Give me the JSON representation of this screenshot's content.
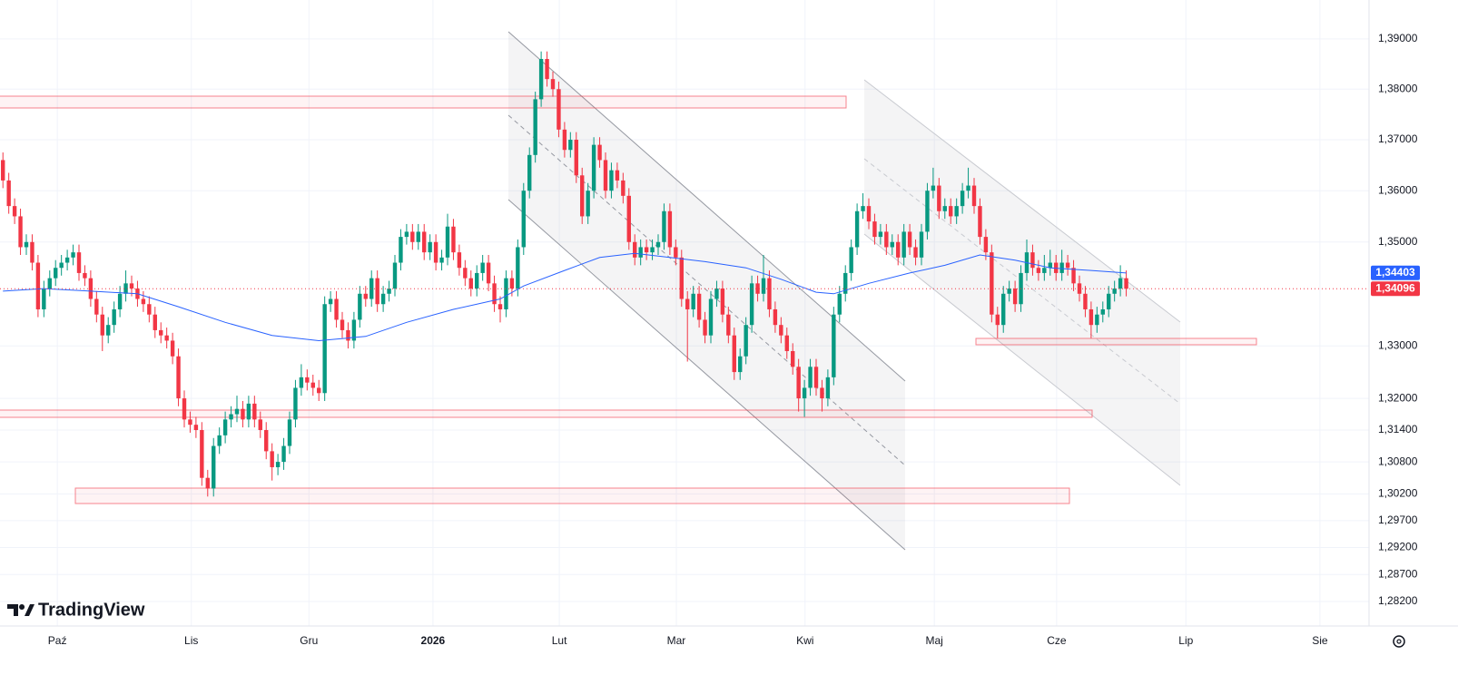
{
  "chart_data": {
    "type": "candlestick",
    "up_color": "#089981",
    "down_color": "#f23645",
    "ohlc": [
      [
        1.366,
        1.3675,
        1.3605,
        1.362
      ],
      [
        1.362,
        1.3635,
        1.3555,
        1.357
      ],
      [
        1.357,
        1.3585,
        1.3535,
        1.355
      ],
      [
        1.355,
        1.3565,
        1.3475,
        1.349
      ],
      [
        1.349,
        1.3515,
        1.3475,
        1.35
      ],
      [
        1.35,
        1.3515,
        1.3445,
        1.346
      ],
      [
        1.346,
        1.3475,
        1.3355,
        1.337
      ],
      [
        1.337,
        1.3425,
        1.3355,
        1.341
      ],
      [
        1.341,
        1.3445,
        1.3395,
        1.343
      ],
      [
        1.343,
        1.3465,
        1.3415,
        1.345
      ],
      [
        1.345,
        1.3475,
        1.3435,
        1.346
      ],
      [
        1.346,
        1.3485,
        1.3445,
        1.347
      ],
      [
        1.347,
        1.3495,
        1.3455,
        1.348
      ],
      [
        1.348,
        1.3495,
        1.3425,
        1.344
      ],
      [
        1.344,
        1.3455,
        1.3415,
        1.343
      ],
      [
        1.343,
        1.3445,
        1.3375,
        1.339
      ],
      [
        1.339,
        1.3405,
        1.3345,
        1.336
      ],
      [
        1.336,
        1.3375,
        1.329,
        1.332
      ],
      [
        1.332,
        1.3355,
        1.3305,
        1.334
      ],
      [
        1.334,
        1.3385,
        1.3325,
        1.337
      ],
      [
        1.337,
        1.3415,
        1.3355,
        1.34
      ],
      [
        1.34,
        1.3445,
        1.3385,
        1.342
      ],
      [
        1.342,
        1.3435,
        1.3395,
        1.341
      ],
      [
        1.341,
        1.3425,
        1.3375,
        1.339
      ],
      [
        1.339,
        1.3405,
        1.3365,
        1.338
      ],
      [
        1.338,
        1.3395,
        1.3345,
        1.336
      ],
      [
        1.336,
        1.3375,
        1.3315,
        1.333
      ],
      [
        1.333,
        1.3345,
        1.3305,
        1.332
      ],
      [
        1.332,
        1.3335,
        1.3295,
        1.331
      ],
      [
        1.331,
        1.3325,
        1.3265,
        1.328
      ],
      [
        1.328,
        1.3295,
        1.3185,
        1.32
      ],
      [
        1.32,
        1.3215,
        1.3145,
        1.316
      ],
      [
        1.316,
        1.3175,
        1.3135,
        1.315
      ],
      [
        1.315,
        1.3165,
        1.3125,
        1.314
      ],
      [
        1.314,
        1.3155,
        1.3035,
        1.305
      ],
      [
        1.305,
        1.3065,
        1.3015,
        1.303
      ],
      [
        1.303,
        1.3125,
        1.3015,
        1.311
      ],
      [
        1.311,
        1.3145,
        1.3095,
        1.313
      ],
      [
        1.313,
        1.3175,
        1.3115,
        1.316
      ],
      [
        1.316,
        1.3185,
        1.3145,
        1.317
      ],
      [
        1.317,
        1.3205,
        1.3155,
        1.318
      ],
      [
        1.318,
        1.3195,
        1.3145,
        1.316
      ],
      [
        1.316,
        1.3205,
        1.3145,
        1.319
      ],
      [
        1.319,
        1.3205,
        1.3145,
        1.316
      ],
      [
        1.316,
        1.3175,
        1.3125,
        1.314
      ],
      [
        1.314,
        1.3155,
        1.3085,
        1.31
      ],
      [
        1.31,
        1.3115,
        1.3045,
        1.307
      ],
      [
        1.307,
        1.3095,
        1.3055,
        1.308
      ],
      [
        1.308,
        1.3125,
        1.3065,
        1.311
      ],
      [
        1.311,
        1.3175,
        1.3095,
        1.316
      ],
      [
        1.316,
        1.3235,
        1.3145,
        1.322
      ],
      [
        1.322,
        1.3265,
        1.3205,
        1.324
      ],
      [
        1.324,
        1.3255,
        1.3215,
        1.323
      ],
      [
        1.323,
        1.3245,
        1.3205,
        1.322
      ],
      [
        1.322,
        1.3235,
        1.3195,
        1.321
      ],
      [
        1.321,
        1.3395,
        1.3195,
        1.338
      ],
      [
        1.338,
        1.3405,
        1.3365,
        1.339
      ],
      [
        1.339,
        1.3405,
        1.3335,
        1.335
      ],
      [
        1.335,
        1.3365,
        1.3315,
        1.333
      ],
      [
        1.333,
        1.3345,
        1.3295,
        1.331
      ],
      [
        1.331,
        1.3365,
        1.3295,
        1.335
      ],
      [
        1.335,
        1.3415,
        1.3335,
        1.34
      ],
      [
        1.34,
        1.3415,
        1.3375,
        1.339
      ],
      [
        1.339,
        1.3445,
        1.3375,
        1.343
      ],
      [
        1.343,
        1.3445,
        1.3365,
        1.338
      ],
      [
        1.338,
        1.3415,
        1.3365,
        1.34
      ],
      [
        1.34,
        1.3425,
        1.3385,
        1.341
      ],
      [
        1.341,
        1.3475,
        1.3395,
        1.346
      ],
      [
        1.346,
        1.3525,
        1.3445,
        1.351
      ],
      [
        1.351,
        1.3535,
        1.3495,
        1.352
      ],
      [
        1.352,
        1.3535,
        1.3485,
        1.35
      ],
      [
        1.35,
        1.3535,
        1.3485,
        1.352
      ],
      [
        1.352,
        1.3535,
        1.3465,
        1.348
      ],
      [
        1.348,
        1.3515,
        1.3465,
        1.35
      ],
      [
        1.35,
        1.3515,
        1.3445,
        1.346
      ],
      [
        1.346,
        1.3485,
        1.3445,
        1.347
      ],
      [
        1.347,
        1.3555,
        1.3455,
        1.353
      ],
      [
        1.353,
        1.3545,
        1.3465,
        1.348
      ],
      [
        1.348,
        1.3495,
        1.3435,
        1.345
      ],
      [
        1.345,
        1.3465,
        1.3415,
        1.343
      ],
      [
        1.343,
        1.3445,
        1.3395,
        1.341
      ],
      [
        1.341,
        1.3455,
        1.3395,
        1.344
      ],
      [
        1.344,
        1.3475,
        1.3425,
        1.346
      ],
      [
        1.346,
        1.3475,
        1.3405,
        1.342
      ],
      [
        1.342,
        1.3435,
        1.3365,
        1.338
      ],
      [
        1.338,
        1.3395,
        1.3345,
        1.337
      ],
      [
        1.337,
        1.3445,
        1.3355,
        1.343
      ],
      [
        1.343,
        1.3445,
        1.3395,
        1.341
      ],
      [
        1.341,
        1.3505,
        1.3395,
        1.349
      ],
      [
        1.349,
        1.3615,
        1.3475,
        1.36
      ],
      [
        1.36,
        1.3685,
        1.3585,
        1.367
      ],
      [
        1.367,
        1.3795,
        1.3655,
        1.378
      ],
      [
        1.378,
        1.3875,
        1.3765,
        1.386
      ],
      [
        1.386,
        1.3875,
        1.3805,
        1.382
      ],
      [
        1.382,
        1.3835,
        1.3785,
        1.38
      ],
      [
        1.38,
        1.3815,
        1.3705,
        1.372
      ],
      [
        1.372,
        1.3735,
        1.3665,
        1.368
      ],
      [
        1.368,
        1.3715,
        1.3665,
        1.37
      ],
      [
        1.37,
        1.3715,
        1.3615,
        1.363
      ],
      [
        1.363,
        1.3645,
        1.3535,
        1.355
      ],
      [
        1.355,
        1.3615,
        1.3535,
        1.36
      ],
      [
        1.36,
        1.3705,
        1.3585,
        1.369
      ],
      [
        1.369,
        1.3705,
        1.3645,
        1.366
      ],
      [
        1.366,
        1.3675,
        1.3585,
        1.36
      ],
      [
        1.36,
        1.3655,
        1.3585,
        1.364
      ],
      [
        1.364,
        1.3655,
        1.3605,
        1.362
      ],
      [
        1.362,
        1.3635,
        1.3575,
        1.359
      ],
      [
        1.359,
        1.3605,
        1.3485,
        1.35
      ],
      [
        1.35,
        1.3515,
        1.3455,
        1.347
      ],
      [
        1.347,
        1.3505,
        1.3455,
        1.349
      ],
      [
        1.349,
        1.3505,
        1.3465,
        1.348
      ],
      [
        1.348,
        1.3505,
        1.3465,
        1.349
      ],
      [
        1.349,
        1.3515,
        1.3475,
        1.35
      ],
      [
        1.35,
        1.3575,
        1.3485,
        1.356
      ],
      [
        1.356,
        1.3575,
        1.3475,
        1.349
      ],
      [
        1.349,
        1.3505,
        1.3455,
        1.347
      ],
      [
        1.347,
        1.3485,
        1.3375,
        1.339
      ],
      [
        1.339,
        1.3405,
        1.327,
        1.337
      ],
      [
        1.337,
        1.3415,
        1.3355,
        1.34
      ],
      [
        1.34,
        1.3415,
        1.3335,
        1.335
      ],
      [
        1.335,
        1.3365,
        1.3305,
        1.332
      ],
      [
        1.332,
        1.3405,
        1.3305,
        1.339
      ],
      [
        1.339,
        1.3425,
        1.3375,
        1.341
      ],
      [
        1.341,
        1.3425,
        1.3345,
        1.336
      ],
      [
        1.336,
        1.3375,
        1.3305,
        1.332
      ],
      [
        1.332,
        1.3335,
        1.3235,
        1.325
      ],
      [
        1.325,
        1.3295,
        1.3235,
        1.328
      ],
      [
        1.328,
        1.3355,
        1.3265,
        1.334
      ],
      [
        1.334,
        1.3435,
        1.3325,
        1.342
      ],
      [
        1.342,
        1.3435,
        1.3385,
        1.34
      ],
      [
        1.34,
        1.3475,
        1.3385,
        1.343
      ],
      [
        1.343,
        1.3445,
        1.3355,
        1.337
      ],
      [
        1.337,
        1.3385,
        1.3325,
        1.334
      ],
      [
        1.334,
        1.3355,
        1.3305,
        1.332
      ],
      [
        1.332,
        1.3335,
        1.3275,
        1.329
      ],
      [
        1.329,
        1.3305,
        1.3245,
        1.326
      ],
      [
        1.326,
        1.3275,
        1.3175,
        1.32
      ],
      [
        1.32,
        1.3235,
        1.3165,
        1.322
      ],
      [
        1.322,
        1.3275,
        1.3205,
        1.326
      ],
      [
        1.326,
        1.3275,
        1.3205,
        1.322
      ],
      [
        1.322,
        1.3235,
        1.3175,
        1.32
      ],
      [
        1.32,
        1.3255,
        1.3185,
        1.324
      ],
      [
        1.324,
        1.3375,
        1.3225,
        1.336
      ],
      [
        1.336,
        1.3415,
        1.3345,
        1.34
      ],
      [
        1.34,
        1.3455,
        1.3385,
        1.344
      ],
      [
        1.344,
        1.3505,
        1.3425,
        1.349
      ],
      [
        1.349,
        1.3575,
        1.3475,
        1.356
      ],
      [
        1.356,
        1.3595,
        1.3545,
        1.357
      ],
      [
        1.357,
        1.3585,
        1.3525,
        1.354
      ],
      [
        1.354,
        1.3555,
        1.3495,
        1.351
      ],
      [
        1.351,
        1.3535,
        1.3495,
        1.352
      ],
      [
        1.352,
        1.3535,
        1.3475,
        1.349
      ],
      [
        1.349,
        1.3515,
        1.3475,
        1.35
      ],
      [
        1.35,
        1.3515,
        1.3455,
        1.347
      ],
      [
        1.347,
        1.3535,
        1.3455,
        1.352
      ],
      [
        1.352,
        1.3535,
        1.3475,
        1.349
      ],
      [
        1.349,
        1.3505,
        1.3455,
        1.347
      ],
      [
        1.347,
        1.3535,
        1.3455,
        1.352
      ],
      [
        1.352,
        1.3615,
        1.3505,
        1.36
      ],
      [
        1.36,
        1.3645,
        1.3585,
        1.361
      ],
      [
        1.361,
        1.3625,
        1.3545,
        1.356
      ],
      [
        1.356,
        1.3585,
        1.3545,
        1.357
      ],
      [
        1.357,
        1.3585,
        1.3535,
        1.355
      ],
      [
        1.355,
        1.3585,
        1.3535,
        1.357
      ],
      [
        1.357,
        1.3615,
        1.3555,
        1.36
      ],
      [
        1.36,
        1.3645,
        1.3585,
        1.361
      ],
      [
        1.361,
        1.3625,
        1.3555,
        1.357
      ],
      [
        1.357,
        1.3585,
        1.3495,
        1.351
      ],
      [
        1.351,
        1.3525,
        1.3465,
        1.348
      ],
      [
        1.348,
        1.3495,
        1.3345,
        1.336
      ],
      [
        1.336,
        1.3375,
        1.3315,
        1.334
      ],
      [
        1.334,
        1.3415,
        1.3325,
        1.34
      ],
      [
        1.34,
        1.3425,
        1.3385,
        1.341
      ],
      [
        1.341,
        1.3425,
        1.3365,
        1.338
      ],
      [
        1.338,
        1.3455,
        1.3365,
        1.344
      ],
      [
        1.344,
        1.3505,
        1.3425,
        1.348
      ],
      [
        1.348,
        1.3495,
        1.3435,
        1.345
      ],
      [
        1.345,
        1.3465,
        1.3425,
        1.344
      ],
      [
        1.344,
        1.3475,
        1.3425,
        1.345
      ],
      [
        1.345,
        1.3485,
        1.3435,
        1.346
      ],
      [
        1.346,
        1.3475,
        1.3425,
        1.344
      ],
      [
        1.344,
        1.3485,
        1.3425,
        1.346
      ],
      [
        1.346,
        1.3475,
        1.3435,
        1.345
      ],
      [
        1.345,
        1.3465,
        1.3405,
        1.342
      ],
      [
        1.342,
        1.3435,
        1.3385,
        1.34
      ],
      [
        1.34,
        1.3415,
        1.3355,
        1.337
      ],
      [
        1.337,
        1.3385,
        1.3315,
        1.334
      ],
      [
        1.334,
        1.3375,
        1.3325,
        1.336
      ],
      [
        1.336,
        1.3385,
        1.3345,
        1.337
      ],
      [
        1.337,
        1.3415,
        1.3355,
        1.34
      ],
      [
        1.34,
        1.3425,
        1.3385,
        1.341
      ],
      [
        1.341,
        1.3455,
        1.3395,
        1.343
      ],
      [
        1.343,
        1.3445,
        1.3395,
        1.34096
      ]
    ],
    "ma": {
      "color": "#2962ff",
      "x": [
        0,
        7,
        15,
        23,
        30,
        38,
        46,
        54,
        62,
        69,
        77,
        85,
        89,
        96,
        102,
        108,
        114,
        120,
        127,
        133,
        139,
        142,
        148,
        155,
        161,
        167,
        173,
        179,
        186,
        192
      ],
      "values": [
        1.3405,
        1.341,
        1.3405,
        1.34,
        1.3375,
        1.3345,
        1.332,
        1.331,
        1.3318,
        1.3345,
        1.337,
        1.339,
        1.3415,
        1.3445,
        1.347,
        1.3478,
        1.347,
        1.3462,
        1.345,
        1.3428,
        1.3403,
        1.34,
        1.342,
        1.344,
        1.3455,
        1.3475,
        1.3465,
        1.345,
        1.3445,
        1.344
      ]
    },
    "log": true,
    "ylim": [
      1.2775,
      1.3978
    ],
    "yticks": [
      {
        "value": 1.39,
        "label": "1,39000"
      },
      {
        "value": 1.38,
        "label": "1,38000"
      },
      {
        "value": 1.37,
        "label": "1,37000"
      },
      {
        "value": 1.36,
        "label": "1,36000"
      },
      {
        "value": 1.35,
        "label": "1,35000"
      },
      {
        "value": 1.33,
        "label": "1,33000"
      },
      {
        "value": 1.32,
        "label": "1,32000"
      },
      {
        "value": 1.314,
        "label": "1,31400"
      },
      {
        "value": 1.308,
        "label": "1,30800"
      },
      {
        "value": 1.302,
        "label": "1,30200"
      },
      {
        "value": 1.297,
        "label": "1,29700"
      },
      {
        "value": 1.292,
        "label": "1,29200"
      },
      {
        "value": 1.287,
        "label": "1,28700"
      },
      {
        "value": 1.282,
        "label": "1,28200"
      }
    ],
    "xlim": [
      -0.5,
      233.5
    ],
    "xticks": [
      {
        "value": 9.3,
        "label": "Paź"
      },
      {
        "value": 32.2,
        "label": "Lis"
      },
      {
        "value": 52.3,
        "label": "Gru"
      },
      {
        "value": 73.5,
        "label": "2026"
      },
      {
        "value": 95.1,
        "label": "Lut"
      },
      {
        "value": 115.1,
        "label": "Mar"
      },
      {
        "value": 137.1,
        "label": "Kwi"
      },
      {
        "value": 159.2,
        "label": "Maj"
      },
      {
        "value": 180.1,
        "label": "Cze"
      },
      {
        "value": 202.2,
        "label": "Lip"
      },
      {
        "value": 225.1,
        "label": "Sie"
      }
    ],
    "grid": true,
    "last_price": {
      "value": 1.34096,
      "label": "1,34096"
    },
    "ma_price": {
      "value": 1.34403,
      "label": "1,34403"
    }
  },
  "logo": "TradingView"
}
